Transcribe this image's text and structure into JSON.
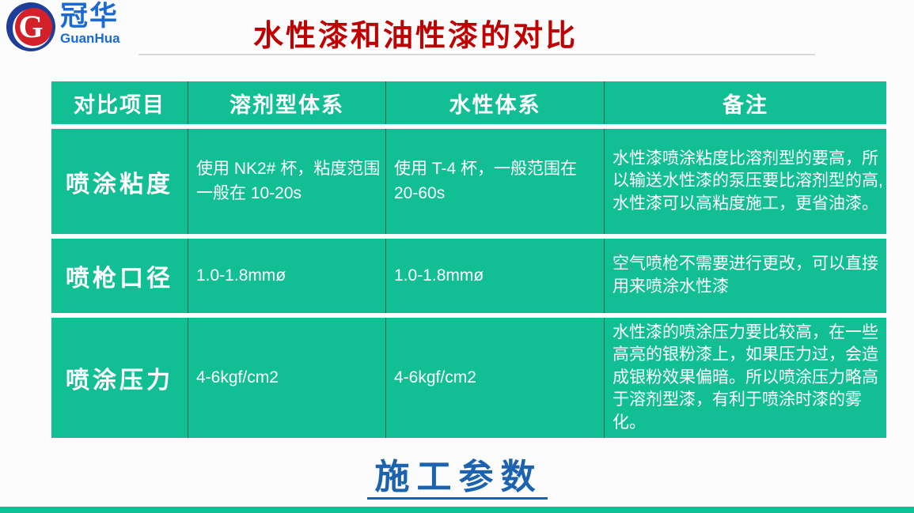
{
  "logo": {
    "letter": "G",
    "brand_cn": "冠华",
    "brand_en": "GuanHua",
    "brand_blue": "#1b6ad4",
    "badge_blue": "#1f3e99",
    "badge_red": "#d42029"
  },
  "header": {
    "title": "水性漆和油性漆的对比",
    "title_color": "#c00000"
  },
  "table": {
    "theme_green": "#12be94",
    "text_color": "#ffffff",
    "columns": [
      "对比项目",
      "溶剂型体系",
      "水性体系",
      "备注"
    ],
    "rows": [
      {
        "item": "喷涂粘度",
        "solvent": "使用 NK2# 杯，粘度范围一般在 10-20s",
        "water": "使用 T-4 杯，一般范围在 20-60s",
        "note": "水性漆喷涂粘度比溶剂型的要高，所以输送水性漆的泵压要比溶剂型的高,水性漆可以高粘度施工，更省油漆。"
      },
      {
        "item": "喷枪口径",
        "solvent": "1.0-1.8mmø",
        "water": "1.0-1.8mmø",
        "note": "空气喷枪不需要进行更改，可以直接用来喷涂水性漆"
      },
      {
        "item": "喷涂压力",
        "solvent": "4-6kgf/cm2",
        "water": "4-6kgf/cm2",
        "note": "水性漆的喷涂压力要比较高，在一些高亮的银粉漆上，如果压力过，会造成银粉效果偏暗。所以喷涂压力略高于溶剂型漆，有利于喷涂时漆的雾化。"
      }
    ]
  },
  "footer": {
    "link_label": "施工参数",
    "link_color": "#1b63ae",
    "bar_color": "#12be94"
  }
}
